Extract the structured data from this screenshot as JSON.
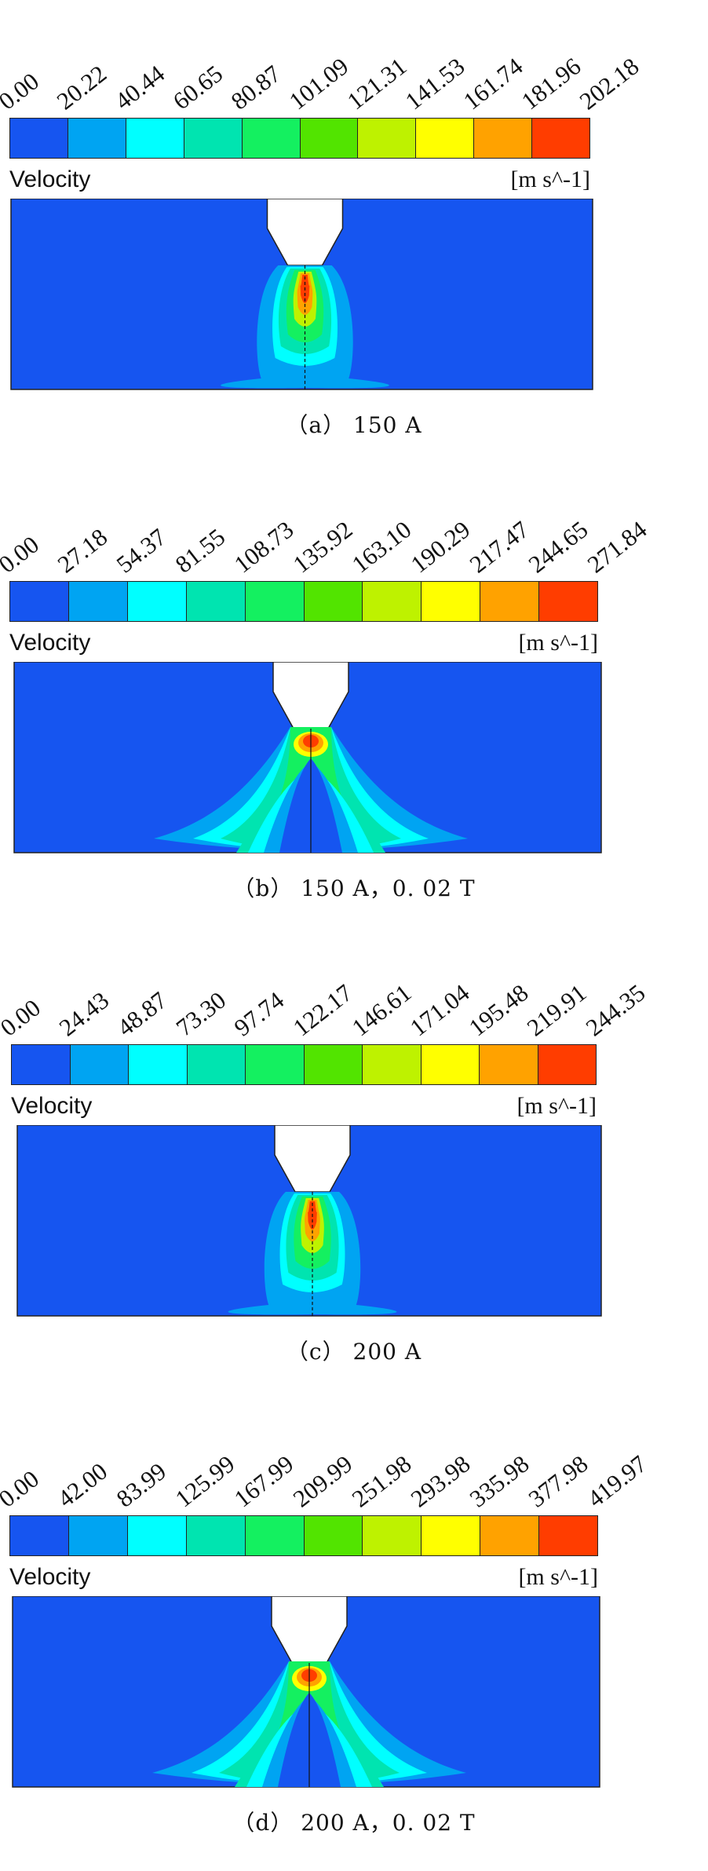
{
  "colors": [
    "#1655f0",
    "#00a4f2",
    "#00ffff",
    "#00e4b0",
    "#14f060",
    "#52e400",
    "#bef200",
    "#ffff00",
    "#ffa200",
    "#ff3d00"
  ],
  "panels": [
    {
      "variable": "Velocity",
      "unit": "[m s^-1]",
      "caption": "（a）  150 A",
      "ticks": [
        "0.00",
        "20.22",
        "40.44",
        "60.65",
        "80.87",
        "101.09",
        "121.31",
        "141.53",
        "161.74",
        "181.96",
        "202.18"
      ],
      "pattern": "single-jet"
    },
    {
      "variable": "Velocity",
      "unit": "[m s^-1]",
      "caption": "（b）  150 A，0. 02 T",
      "ticks": [
        "0.00",
        "27.18",
        "54.37",
        "81.55",
        "108.73",
        "135.92",
        "163.10",
        "190.29",
        "217.47",
        "244.65",
        "271.84"
      ],
      "pattern": "split-jet"
    },
    {
      "variable": "Velocity",
      "unit": "[m s^-1]",
      "caption": "（c）  200 A",
      "ticks": [
        "0.00",
        "24.43",
        "48.87",
        "73.30",
        "97.74",
        "122.17",
        "146.61",
        "171.04",
        "195.48",
        "219.91",
        "244.35"
      ],
      "pattern": "single-jet"
    },
    {
      "variable": "Velocity",
      "unit": "[m s^-1]",
      "caption": "（d）  200 A，0. 02 T",
      "ticks": [
        "0.00",
        "42.00",
        "83.99",
        "125.99",
        "167.99",
        "209.99",
        "251.98",
        "293.98",
        "335.98",
        "377.98",
        "419.97"
      ],
      "pattern": "split-jet"
    }
  ]
}
